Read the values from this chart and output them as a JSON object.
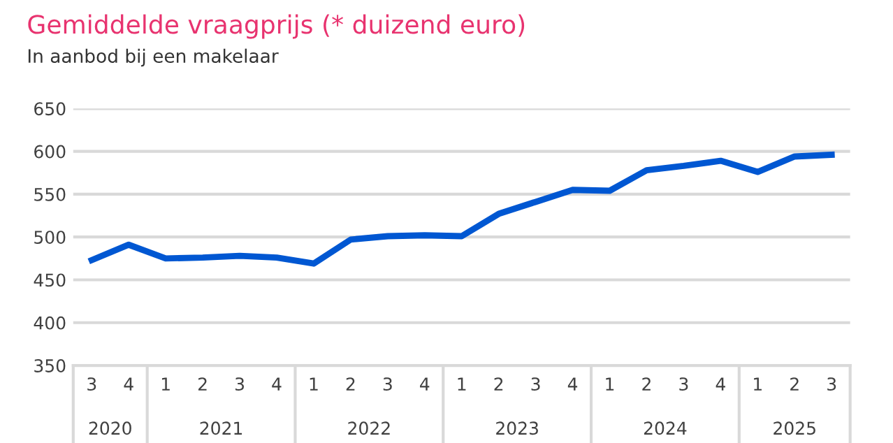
{
  "chart_data": {
    "type": "line",
    "title": "Gemiddelde vraagprijs (* duizend euro)",
    "subtitle": "In aanbod bij een makelaar",
    "categories": [
      "3",
      "4",
      "1",
      "2",
      "3",
      "4",
      "1",
      "2",
      "3",
      "4",
      "1",
      "2",
      "3",
      "4",
      "1",
      "2",
      "3",
      "4",
      "1",
      "2",
      "3"
    ],
    "series": [
      {
        "color": "#0057d2",
        "values": [
          473,
          491,
          475,
          476,
          478,
          476,
          469,
          497,
          501,
          502,
          501,
          527,
          541,
          555,
          554,
          578,
          583,
          589,
          576,
          594,
          596
        ]
      }
    ],
    "annotations": [
      "2020",
      "2021",
      "2022",
      "2023",
      "2024",
      "2025"
    ],
    "ylim": [
      350,
      650
    ],
    "yticks": [
      350,
      400,
      450,
      500,
      550,
      600,
      650
    ],
    "grid": "y",
    "legend": false,
    "marker": "none",
    "line_style": "solid"
  }
}
